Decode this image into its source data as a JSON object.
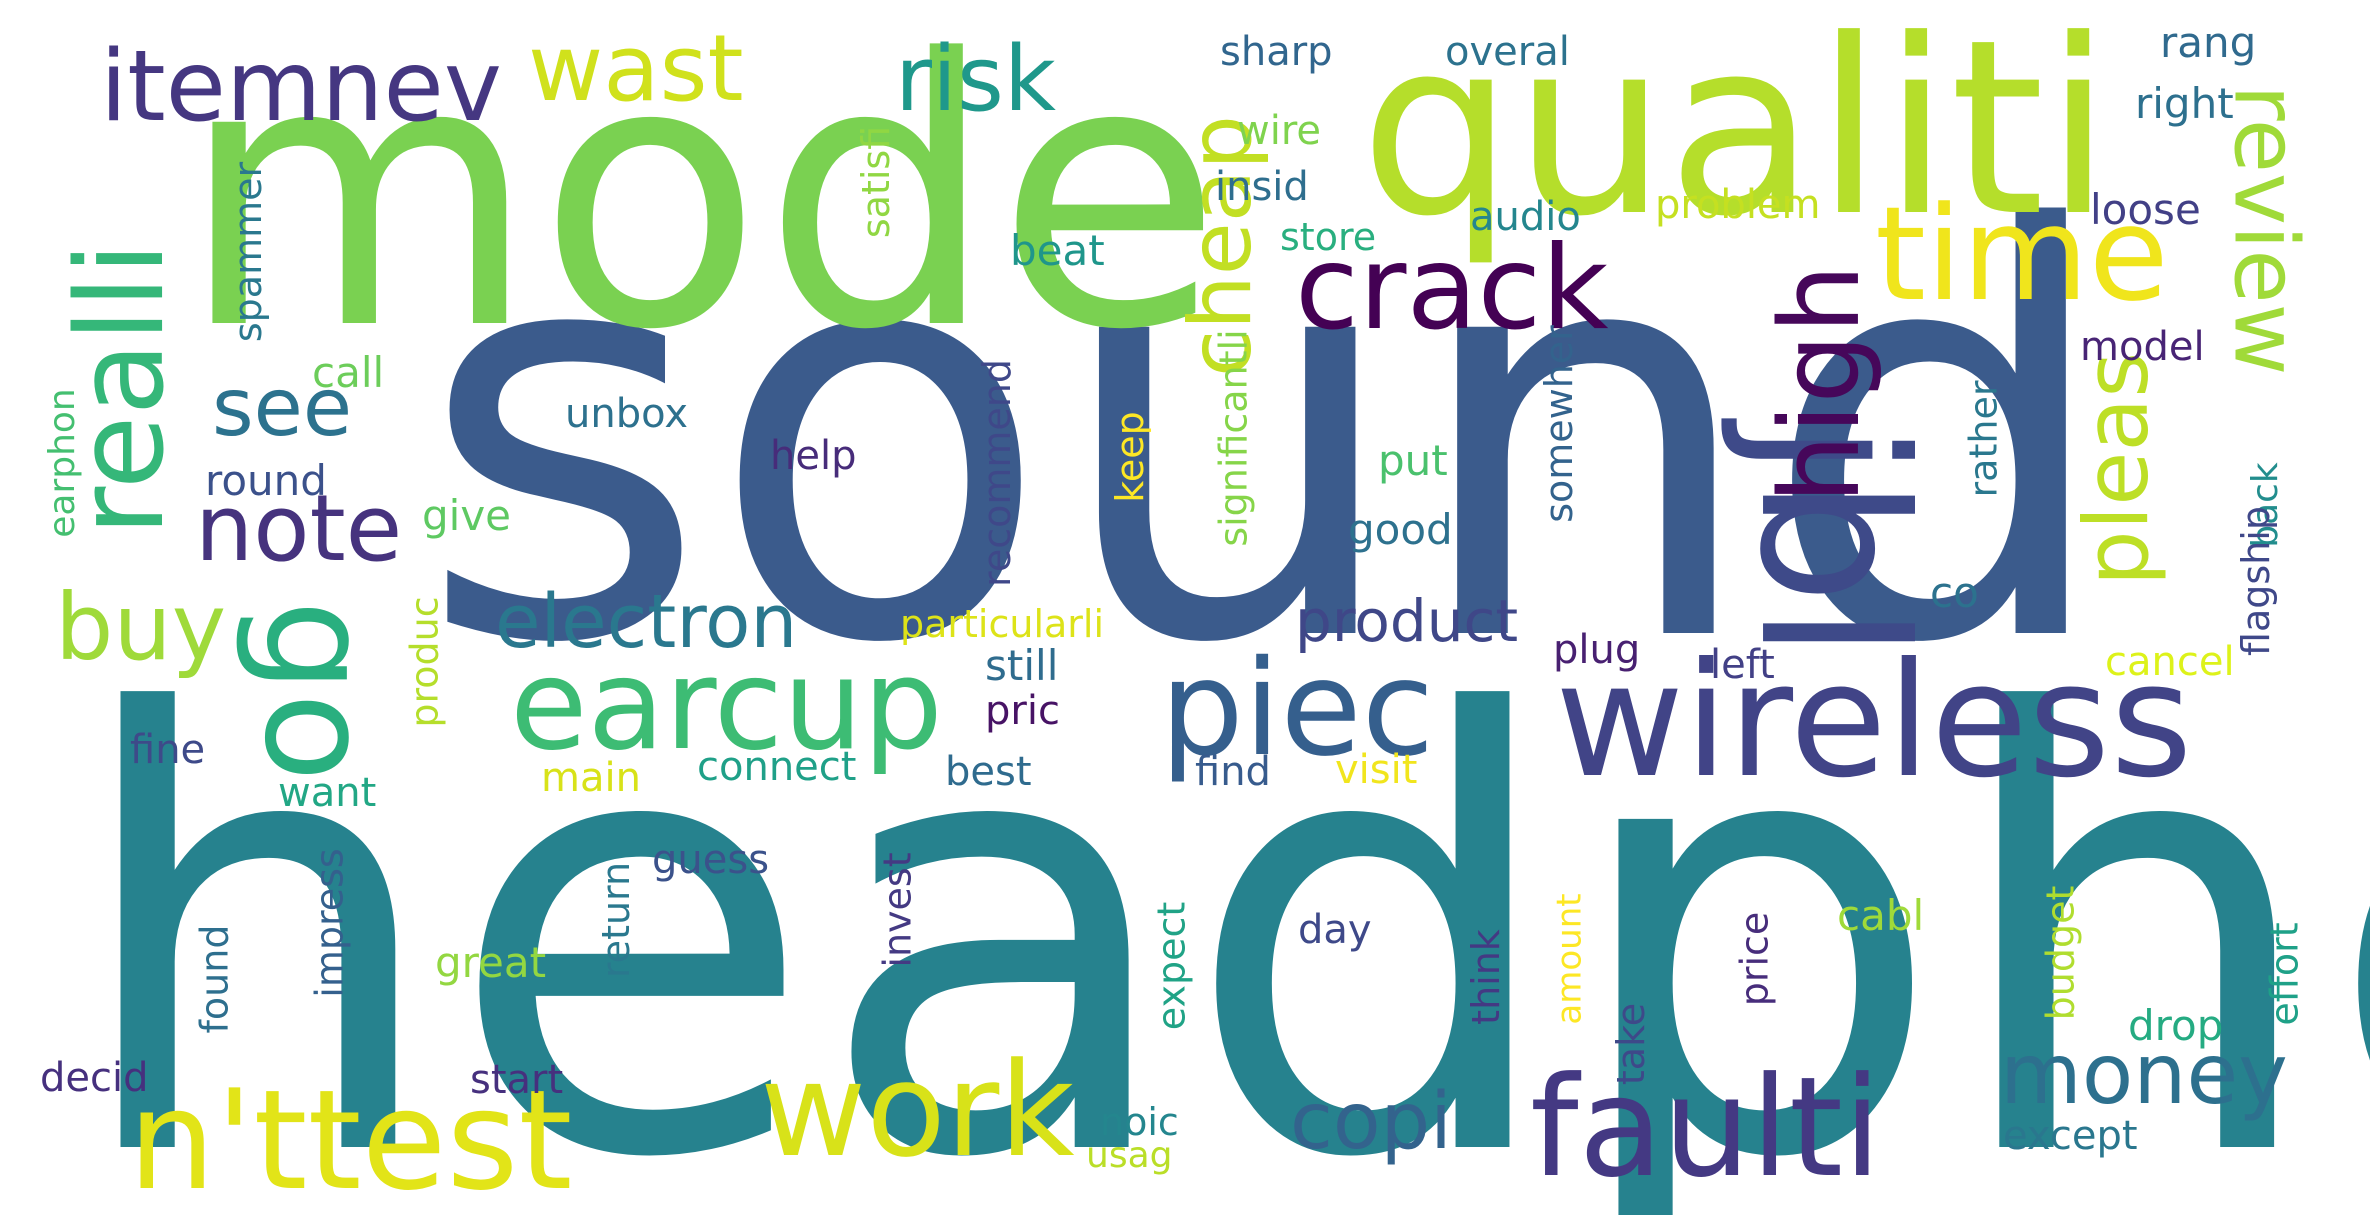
{
  "words": [
    {
      "text": "headphon",
      "color": "#26828e"
    },
    {
      "text": "sound",
      "color": "#3b5b8c"
    },
    {
      "text": "mode",
      "color": "#7ad151"
    },
    {
      "text": "qualiti",
      "color": "#b5de2b"
    },
    {
      "text": "wireless",
      "color": "#414487"
    },
    {
      "text": "jbl",
      "color": "#3e4a89"
    },
    {
      "text": "time",
      "color": "#f0e51c"
    },
    {
      "text": "crack",
      "color": "#440154"
    },
    {
      "text": "earcup",
      "color": "#3dbc74"
    },
    {
      "text": "piec",
      "color": "#355f8d"
    },
    {
      "text": "faulti",
      "color": "#443983"
    },
    {
      "text": "n'ttest",
      "color": "#e2e418"
    },
    {
      "text": "work",
      "color": "#d8e219"
    },
    {
      "text": "realli",
      "color": "#35b779"
    },
    {
      "text": "go",
      "color": "#29af7f"
    },
    {
      "text": "high",
      "color": "#46075a"
    },
    {
      "text": "itemnev",
      "color": "#453781"
    },
    {
      "text": "wast",
      "color": "#d0e11c"
    },
    {
      "text": "risk",
      "color": "#1f988b"
    },
    {
      "text": "cheap",
      "color": "#c2df23"
    },
    {
      "text": "pleas",
      "color": "#bddf26"
    },
    {
      "text": "review",
      "color": "#a0da39"
    },
    {
      "text": "see",
      "color": "#2c728e"
    },
    {
      "text": "note",
      "color": "#46337e"
    },
    {
      "text": "buy",
      "color": "#9fda3a"
    },
    {
      "text": "electron",
      "color": "#2a788e"
    },
    {
      "text": "product",
      "color": "#3f4788"
    },
    {
      "text": "money",
      "color": "#2d708e"
    },
    {
      "text": "copi",
      "color": "#33638d"
    },
    {
      "text": "sharp",
      "color": "#31668e"
    },
    {
      "text": "overal",
      "color": "#2c728e"
    },
    {
      "text": "rang",
      "color": "#306a8e"
    },
    {
      "text": "right",
      "color": "#2d708e"
    },
    {
      "text": "wire",
      "color": "#7fd34e"
    },
    {
      "text": "insid",
      "color": "#2e6e8e"
    },
    {
      "text": "satisfi",
      "color": "#90d743"
    },
    {
      "text": "spammer",
      "color": "#2a788e"
    },
    {
      "text": "beat",
      "color": "#1f968b"
    },
    {
      "text": "audio",
      "color": "#24868e"
    },
    {
      "text": "problem",
      "color": "#c5e021"
    },
    {
      "text": "loose",
      "color": "#424086"
    },
    {
      "text": "store",
      "color": "#29af7f"
    },
    {
      "text": "call",
      "color": "#6ccd5a"
    },
    {
      "text": "model",
      "color": "#482475"
    },
    {
      "text": "earphon",
      "color": "#44bf70"
    },
    {
      "text": "unbox",
      "color": "#2d718e"
    },
    {
      "text": "round",
      "color": "#3b518b"
    },
    {
      "text": "recommend",
      "color": "#3f4889"
    },
    {
      "text": "help",
      "color": "#472c7a"
    },
    {
      "text": "keep",
      "color": "#fde725"
    },
    {
      "text": "significantli",
      "color": "#86d549"
    },
    {
      "text": "put",
      "color": "#4ac16d"
    },
    {
      "text": "somewher",
      "color": "#33638d"
    },
    {
      "text": "rather",
      "color": "#2a788e"
    },
    {
      "text": "back",
      "color": "#228d8d"
    },
    {
      "text": "flagship",
      "color": "#3f4889"
    },
    {
      "text": "give",
      "color": "#5ec962"
    },
    {
      "text": "good",
      "color": "#2d718e"
    },
    {
      "text": "co",
      "color": "#2c728e"
    },
    {
      "text": "produc",
      "color": "#b5de2b"
    },
    {
      "text": "particularli",
      "color": "#dde318"
    },
    {
      "text": "plug",
      "color": "#482071"
    },
    {
      "text": "left",
      "color": "#424086"
    },
    {
      "text": "cancel",
      "color": "#ddf21a"
    },
    {
      "text": "still",
      "color": "#2f6c8e"
    },
    {
      "text": "pric",
      "color": "#471365"
    },
    {
      "text": "fine",
      "color": "#3e4a89"
    },
    {
      "text": "connect",
      "color": "#1fa088"
    },
    {
      "text": "best",
      "color": "#2f6b8e"
    },
    {
      "text": "find",
      "color": "#375b8d"
    },
    {
      "text": "visit",
      "color": "#f1e51d"
    },
    {
      "text": "main",
      "color": "#d8e219"
    },
    {
      "text": "want",
      "color": "#22a785"
    },
    {
      "text": "guess",
      "color": "#3b528b"
    },
    {
      "text": "impress",
      "color": "#34608d"
    },
    {
      "text": "return",
      "color": "#2a788e"
    },
    {
      "text": "invest",
      "color": "#443a83"
    },
    {
      "text": "found",
      "color": "#2e6f8e"
    },
    {
      "text": "great",
      "color": "#93d741"
    },
    {
      "text": "expect",
      "color": "#20a386"
    },
    {
      "text": "day",
      "color": "#3e4989"
    },
    {
      "text": "think",
      "color": "#443983"
    },
    {
      "text": "amount",
      "color": "#fde725"
    },
    {
      "text": "price",
      "color": "#472d7b"
    },
    {
      "text": "cabl",
      "color": "#a0da39"
    },
    {
      "text": "budget",
      "color": "#b0dd2f"
    },
    {
      "text": "effort",
      "color": "#1fa188"
    },
    {
      "text": "drop",
      "color": "#25ab82"
    },
    {
      "text": "take",
      "color": "#3e4989"
    },
    {
      "text": "decid",
      "color": "#46307e"
    },
    {
      "text": "start",
      "color": "#46307e"
    },
    {
      "text": "noic",
      "color": "#24868e"
    },
    {
      "text": "usag",
      "color": "#bade28"
    },
    {
      "text": "except",
      "color": "#2a778e"
    }
  ]
}
